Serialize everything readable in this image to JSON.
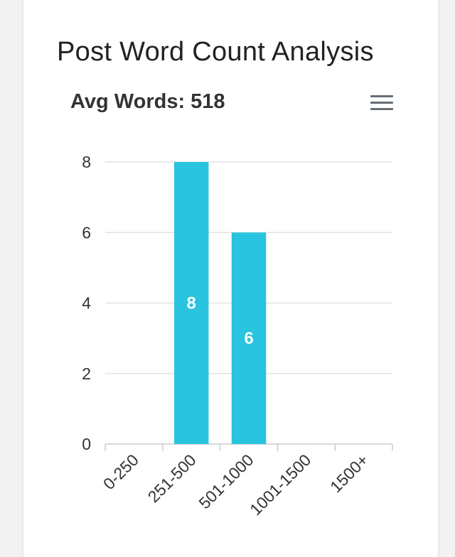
{
  "card": {
    "title": "Post Word Count Analysis"
  },
  "menu": {
    "icon": "hamburger-menu-icon"
  },
  "chart_data": {
    "type": "bar",
    "title": "Avg Words: 518",
    "categories": [
      "0-250",
      "251-500",
      "501-1000",
      "1001-1500",
      "1500+"
    ],
    "values": [
      0,
      8,
      6,
      0,
      0
    ],
    "data_labels": [
      "",
      "8",
      "6",
      "",
      ""
    ],
    "xlabel": "",
    "ylabel": "",
    "ylim": [
      0,
      8
    ],
    "yticks": [
      0,
      2,
      4,
      6,
      8
    ],
    "grid": true,
    "bar_color": "#29c4df",
    "grid_color": "#e2e2e2",
    "axis_color": "#cccccc"
  }
}
